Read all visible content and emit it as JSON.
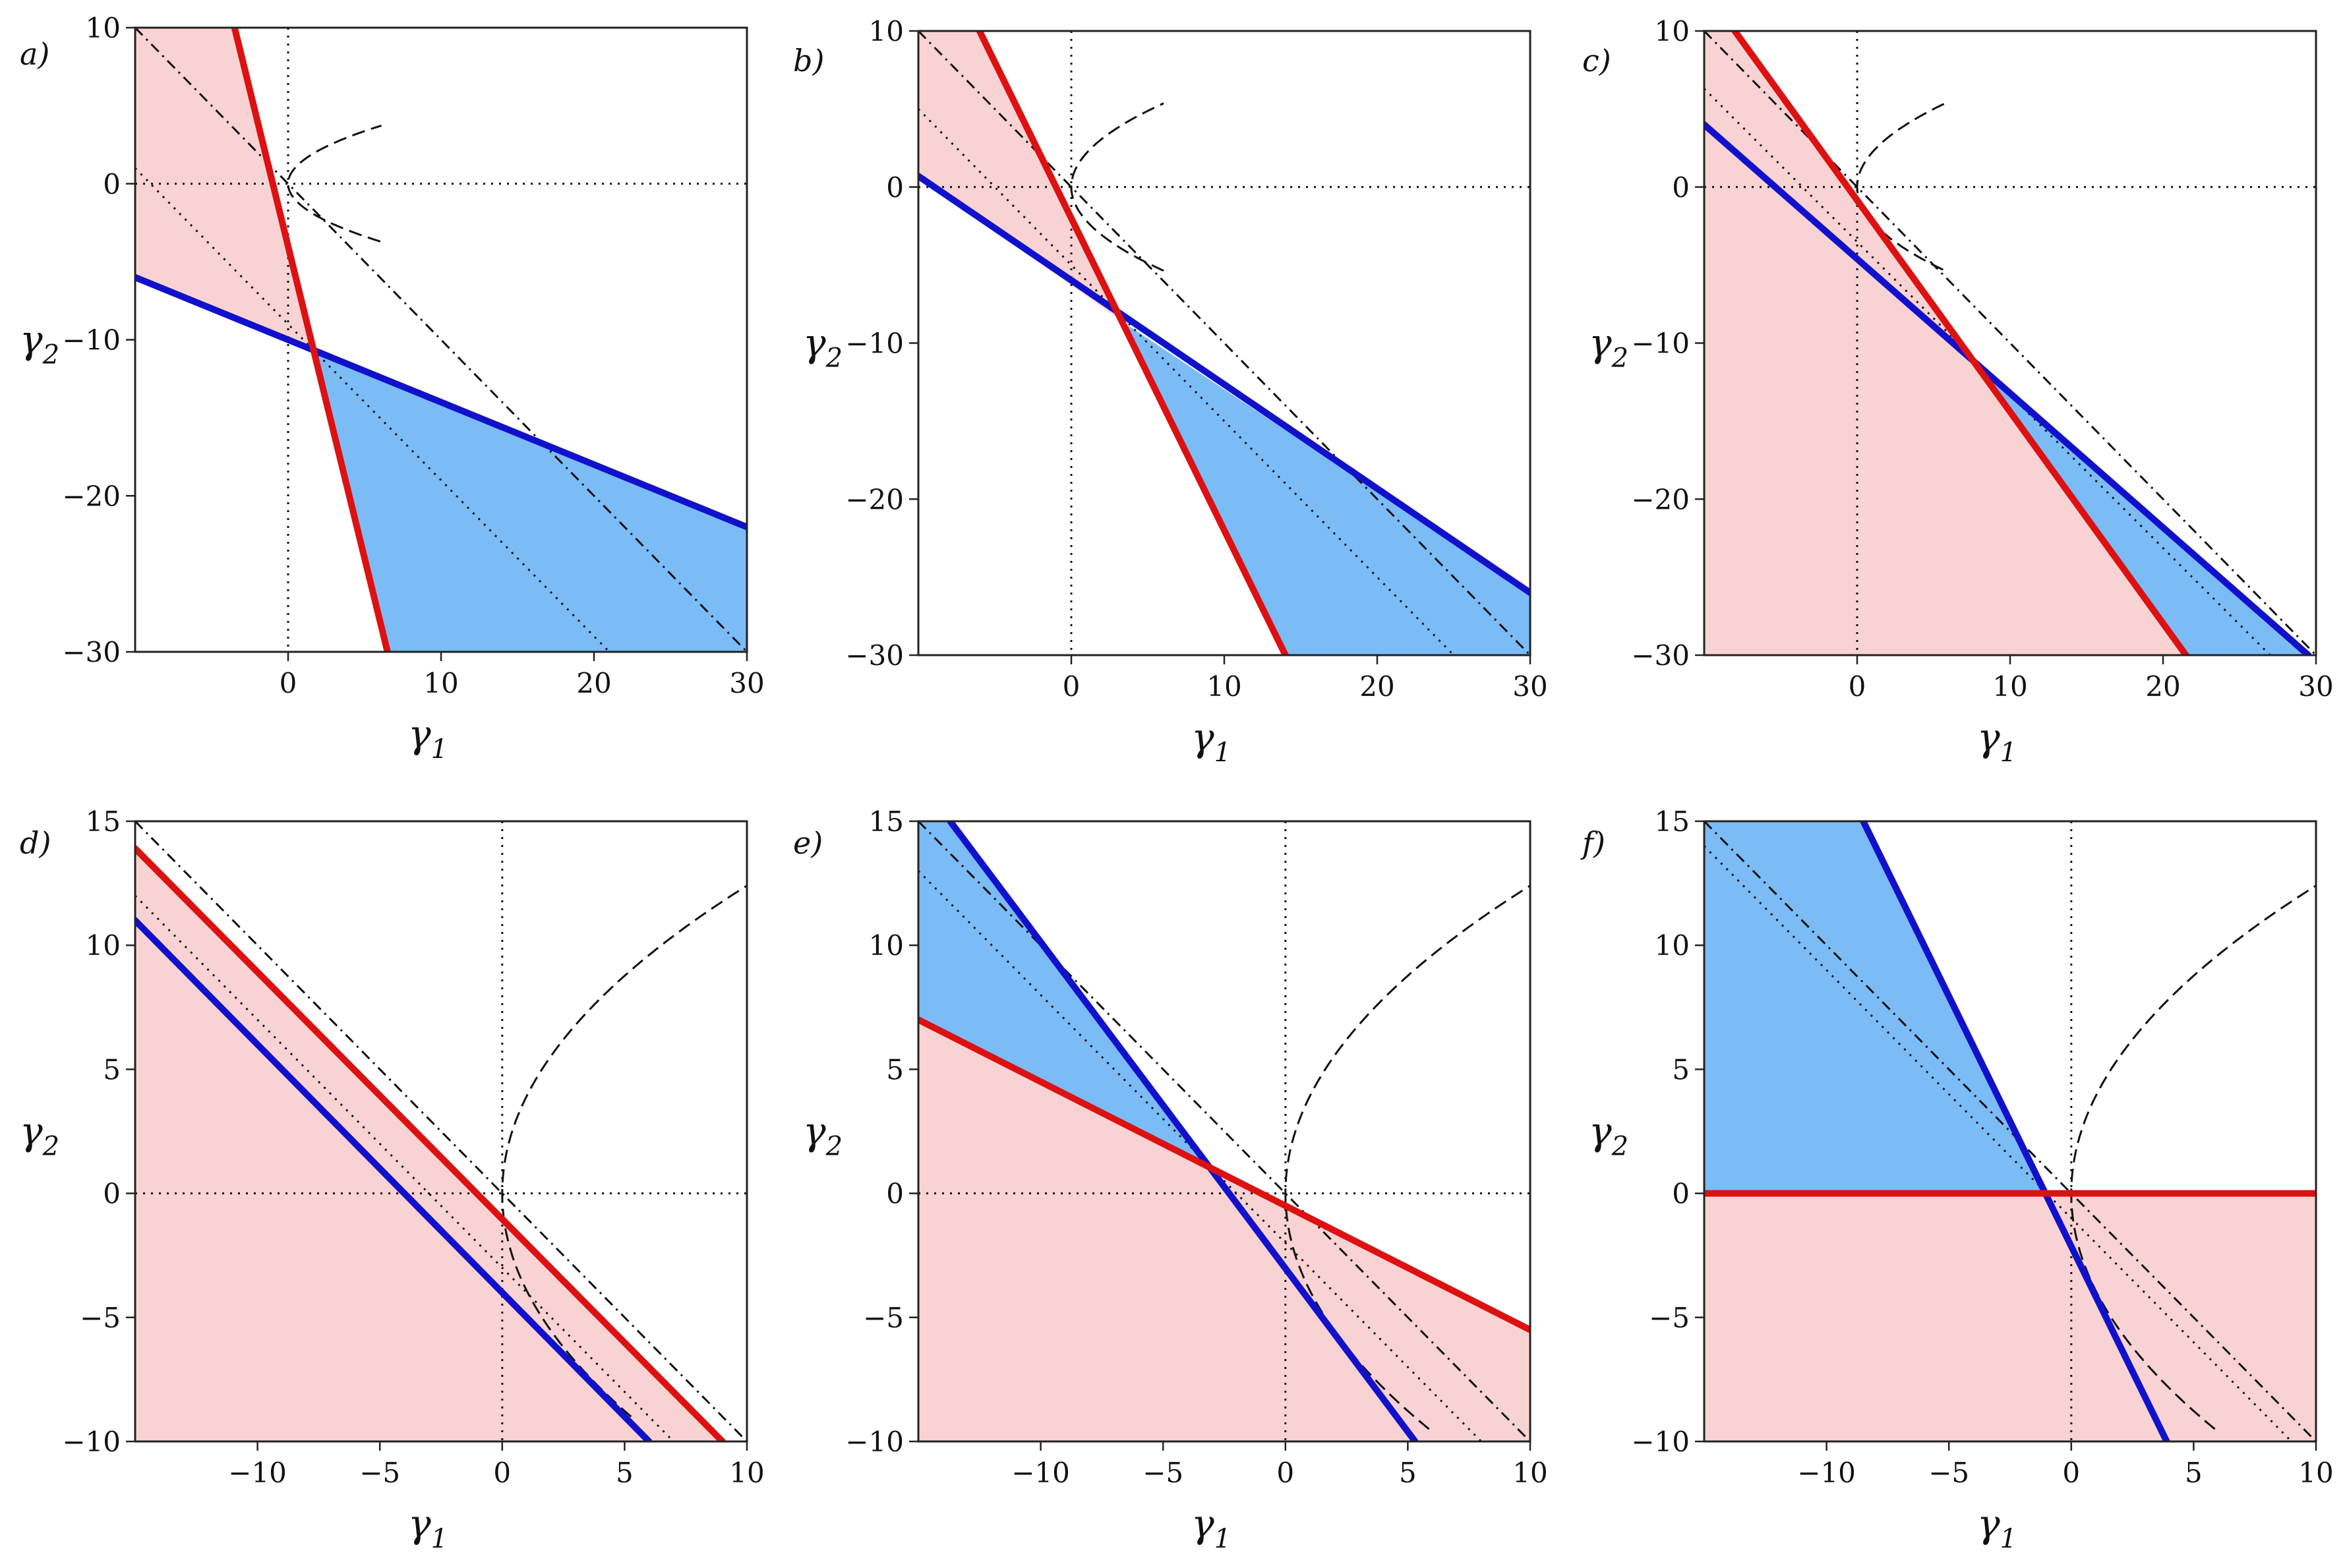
{
  "figure": {
    "colors": {
      "red_line": "#dd1111",
      "blue_line": "#1111cc",
      "red_fill": "#f9d3d3",
      "blue_fill": "#7bbcf7",
      "black": "#111111"
    }
  },
  "chart_data": [
    {
      "panel_label": "a)",
      "type": "line",
      "xlabel": "γ",
      "xlabel_sub": "1",
      "ylabel": "γ",
      "ylabel_sub": "2",
      "xlim": [
        -10,
        30
      ],
      "ylim": [
        -30,
        10
      ],
      "xticks": [
        0,
        10,
        20,
        30
      ],
      "yticks": [
        -30,
        -20,
        -10,
        0,
        10
      ],
      "red_line": [
        [
          -3.5,
          10
        ],
        [
          6.5,
          -30
        ]
      ],
      "blue_line": [
        [
          -10,
          -6
        ],
        [
          30,
          -22
        ]
      ],
      "red_region": [
        [
          -10,
          10
        ],
        [
          -3.5,
          10
        ],
        [
          1.8,
          -10.7
        ],
        [
          -10,
          -6
        ]
      ],
      "blue_region": [
        [
          1.8,
          -10.7
        ],
        [
          6.5,
          -30
        ],
        [
          30,
          -30
        ],
        [
          30,
          -22
        ]
      ],
      "dotted_diagonal": [
        [
          -10,
          1
        ],
        [
          21,
          -30
        ]
      ],
      "dashdot_line": [
        [
          -10,
          10
        ],
        [
          30,
          -30
        ]
      ],
      "dashed_curve": {
        "vertex": [
          0,
          0
        ],
        "a": 0.44,
        "x_max": 6.3,
        "t_min": -5.3,
        "t_max": 13.5
      },
      "crosshair": [
        0,
        0
      ]
    },
    {
      "panel_label": "b)",
      "type": "line",
      "xlabel": "γ",
      "xlabel_sub": "1",
      "ylabel": "γ",
      "ylabel_sub": "2",
      "xlim": [
        -10,
        30
      ],
      "ylim": [
        -30,
        10
      ],
      "xticks": [
        0,
        10,
        20,
        30
      ],
      "yticks": [
        -30,
        -20,
        -10,
        0,
        10
      ],
      "red_line": [
        [
          -6,
          10
        ],
        [
          14,
          -30
        ]
      ],
      "blue_line": [
        [
          -10,
          0.7
        ],
        [
          30,
          -26
        ]
      ],
      "red_region": [
        [
          -10,
          10
        ],
        [
          -6,
          10
        ],
        [
          3.3,
          -8.6
        ],
        [
          -10,
          0.7
        ]
      ],
      "blue_region": [
        [
          3.3,
          -8.6
        ],
        [
          14,
          -30
        ],
        [
          30,
          -30
        ],
        [
          30,
          -26
        ]
      ],
      "dotted_diagonal": [
        [
          -10,
          5
        ],
        [
          25,
          -30
        ]
      ],
      "dashdot_line": [
        [
          -10,
          10
        ],
        [
          30,
          -30
        ]
      ],
      "dashed_curve": {
        "vertex": [
          0,
          0
        ],
        "a": 0.21,
        "x_max": 6.3,
        "t_min": -5.5,
        "t_max": 22
      },
      "crosshair": [
        0,
        0
      ]
    },
    {
      "panel_label": "c)",
      "type": "line",
      "xlabel": "γ",
      "xlabel_sub": "1",
      "ylabel": "γ",
      "ylabel_sub": "2",
      "xlim": [
        -10,
        30
      ],
      "ylim": [
        -30,
        10
      ],
      "xticks": [
        0,
        10,
        20,
        30
      ],
      "yticks": [
        -30,
        -20,
        -10,
        0,
        10
      ],
      "red_line": [
        [
          -8,
          10
        ],
        [
          21.5,
          -30
        ]
      ],
      "blue_line": [
        [
          -10,
          4
        ],
        [
          29.5,
          -30
        ]
      ],
      "red_region": [
        [
          -10,
          10
        ],
        [
          -8,
          10
        ],
        [
          7.2,
          -10.6
        ],
        [
          -10,
          4
        ]
      ],
      "red_region2": [
        [
          -10,
          4
        ],
        [
          7.2,
          -10.6
        ],
        [
          21.5,
          -30
        ],
        [
          -10,
          -30
        ]
      ],
      "blue_region": [
        [
          7.2,
          -10.6
        ],
        [
          29.5,
          -30
        ],
        [
          21.5,
          -30
        ]
      ],
      "dotted_diagonal": [
        [
          -10,
          6.3
        ],
        [
          27,
          -30
        ]
      ],
      "dashdot_line": [
        [
          -10,
          10
        ],
        [
          30,
          -30
        ]
      ],
      "dashed_curve": {
        "vertex": [
          0,
          0
        ],
        "a": 0.2,
        "x_max": 6.3,
        "t_min": -5.3,
        "t_max": 22
      },
      "crosshair": [
        0,
        0
      ]
    },
    {
      "panel_label": "d)",
      "type": "line",
      "xlabel": "γ",
      "xlabel_sub": "1",
      "ylabel": "γ",
      "ylabel_sub": "2",
      "xlim": [
        -15,
        10
      ],
      "ylim": [
        -10,
        15
      ],
      "xticks": [
        -10,
        -5,
        0,
        5,
        10
      ],
      "yticks": [
        -10,
        -5,
        0,
        5,
        10,
        15
      ],
      "red_line": [
        [
          -15,
          13.9
        ],
        [
          9,
          -10
        ]
      ],
      "blue_line": [
        [
          -15,
          11
        ],
        [
          6,
          -10
        ]
      ],
      "red_region": [
        [
          -15,
          13.9
        ],
        [
          9,
          -10
        ],
        [
          -15,
          -10
        ]
      ],
      "dotted_diagonal": [
        [
          -15,
          12
        ],
        [
          7,
          -10
        ]
      ],
      "dashdot_line": [
        [
          -15,
          15
        ],
        [
          10,
          -10
        ]
      ],
      "dashed_curve": {
        "vertex": [
          0,
          0
        ],
        "a": 0.065,
        "x_max": 10,
        "t_min": -9,
        "t_max": 12.5
      },
      "crosshair": [
        0,
        0
      ]
    },
    {
      "panel_label": "e)",
      "type": "line",
      "xlabel": "γ",
      "xlabel_sub": "1",
      "ylabel": "γ",
      "ylabel_sub": "2",
      "xlim": [
        -15,
        10
      ],
      "ylim": [
        -10,
        15
      ],
      "xticks": [
        -10,
        -5,
        0,
        5,
        10
      ],
      "yticks": [
        -10,
        -5,
        0,
        5,
        10,
        15
      ],
      "red_line": [
        [
          -15,
          7
        ],
        [
          10,
          -5.5
        ]
      ],
      "blue_line": [
        [
          -13.7,
          15
        ],
        [
          5.3,
          -10
        ]
      ],
      "blue_region": [
        [
          -15,
          15
        ],
        [
          -13.7,
          15
        ],
        [
          -3,
          1
        ],
        [
          -15,
          7
        ]
      ],
      "red_region": [
        [
          -15,
          7
        ],
        [
          -3,
          1
        ],
        [
          5.3,
          -10
        ],
        [
          -15,
          -10
        ]
      ],
      "red_region2": [
        [
          -3,
          1
        ],
        [
          10,
          -5.5
        ],
        [
          10,
          -10
        ],
        [
          5.3,
          -10
        ]
      ],
      "dotted_diagonal": [
        [
          -15,
          13
        ],
        [
          8,
          -10
        ]
      ],
      "dashdot_line": [
        [
          -15,
          15
        ],
        [
          10,
          -10
        ]
      ],
      "dashed_curve": {
        "vertex": [
          0,
          0
        ],
        "a": 0.065,
        "x_max": 10,
        "t_min": -9.5,
        "t_max": 12.5
      },
      "crosshair": [
        0,
        0
      ]
    },
    {
      "panel_label": "f)",
      "type": "line",
      "xlabel": "γ",
      "xlabel_sub": "1",
      "ylabel": "γ",
      "ylabel_sub": "2",
      "xlim": [
        -15,
        10
      ],
      "ylim": [
        -10,
        15
      ],
      "xticks": [
        -10,
        -5,
        0,
        5,
        10
      ],
      "yticks": [
        -10,
        -5,
        0,
        5,
        10,
        15
      ],
      "red_line": [
        [
          -15,
          0
        ],
        [
          10,
          0
        ]
      ],
      "blue_line": [
        [
          -8.5,
          15
        ],
        [
          3.9,
          -10
        ]
      ],
      "blue_region": [
        [
          -15,
          15
        ],
        [
          -8.5,
          15
        ],
        [
          -1,
          0
        ],
        [
          -15,
          0
        ]
      ],
      "red_region": [
        [
          -15,
          0
        ],
        [
          10,
          0
        ],
        [
          10,
          -10
        ],
        [
          -15,
          -10
        ]
      ],
      "dotted_diagonal": [
        [
          -15,
          14
        ],
        [
          9,
          -10
        ]
      ],
      "dashdot_line": [
        [
          -15,
          15
        ],
        [
          10,
          -10
        ]
      ],
      "dashed_curve": {
        "vertex": [
          0,
          0
        ],
        "a": 0.065,
        "x_max": 10,
        "t_min": -9.5,
        "t_max": 12.5
      },
      "crosshair": [
        0,
        0
      ]
    }
  ]
}
